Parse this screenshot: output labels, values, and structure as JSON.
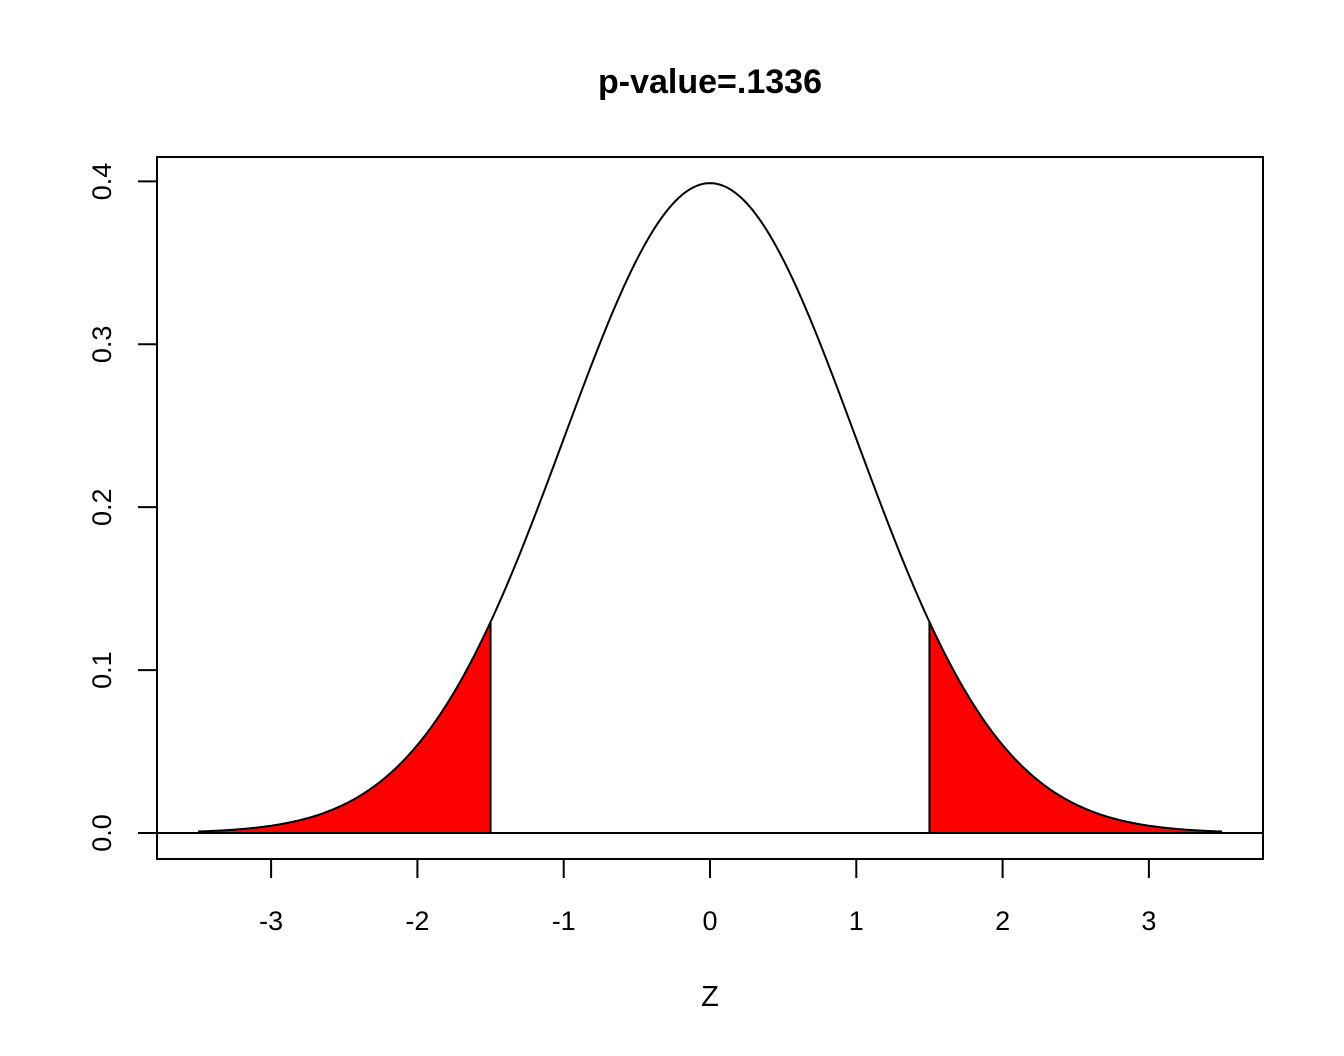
{
  "chart_data": {
    "type": "area",
    "title": "p-value=.1336",
    "xlabel": "Z",
    "ylabel": "",
    "xlim": [
      -3.78,
      3.78
    ],
    "ylim": [
      -0.016,
      0.415
    ],
    "x_ticks": [
      "-3",
      "-2",
      "-1",
      "0",
      "1",
      "2",
      "3"
    ],
    "y_ticks": [
      "0.0",
      "0.1",
      "0.2",
      "0.3",
      "0.4"
    ],
    "grid": false,
    "series": [
      {
        "kind": "standard-normal-density",
        "x": [
          -3.5,
          -3.25,
          -3.0,
          -2.75,
          -2.5,
          -2.25,
          -2.0,
          -1.75,
          -1.5,
          -1.25,
          -1.0,
          -0.75,
          -0.5,
          -0.25,
          0.0,
          0.25,
          0.5,
          0.75,
          1.0,
          1.25,
          1.5,
          1.75,
          2.0,
          2.25,
          2.5,
          2.75,
          3.0,
          3.25,
          3.5
        ],
        "y": [
          0.0009,
          0.002,
          0.0044,
          0.0091,
          0.0175,
          0.0317,
          0.054,
          0.0863,
          0.1295,
          0.1826,
          0.242,
          0.3011,
          0.3521,
          0.3867,
          0.3989,
          0.3867,
          0.3521,
          0.3011,
          0.242,
          0.1826,
          0.1295,
          0.0863,
          0.054,
          0.0317,
          0.0175,
          0.0091,
          0.0044,
          0.002,
          0.0009
        ],
        "color": "#000000"
      }
    ],
    "shaded_regions": [
      {
        "from": -3.5,
        "to": -1.5,
        "color": "#ff0000"
      },
      {
        "from": 1.5,
        "to": 3.5,
        "color": "#ff0000"
      }
    ],
    "baseline": 0
  }
}
